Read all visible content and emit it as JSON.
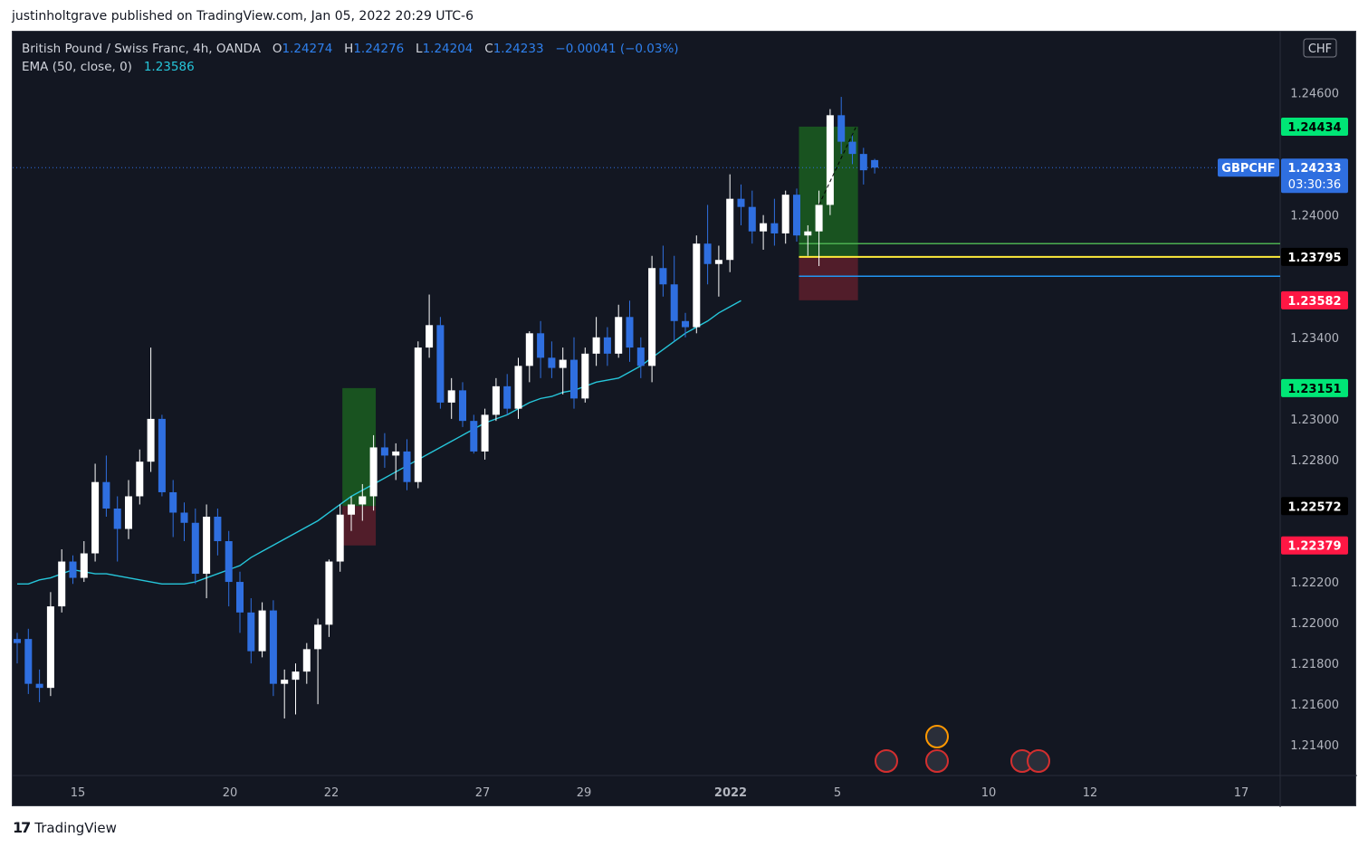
{
  "header": {
    "published": "justinholtgrave published on TradingView.com, Jan 05, 2022 20:29 UTC-6"
  },
  "legend": {
    "symbol": "British Pound / Swiss Franc, 4h, OANDA",
    "o_label": "O",
    "o": "1.24274",
    "h_label": "H",
    "h": "1.24276",
    "l_label": "L",
    "l": "1.24204",
    "c_label": "C",
    "c": "1.24233",
    "change": "−0.00041 (−0.03%)",
    "ema_label": "EMA (50, close, 0)",
    "ema": "1.23586"
  },
  "footer": {
    "logo": "17",
    "brand": "TradingView"
  },
  "colors": {
    "background": "#131722",
    "bull": "#ffffff",
    "bear": "#2f6fe0",
    "ema": "#26c6da",
    "target": "#00c853",
    "stop": "#ff1744",
    "fib50": "#4caf50",
    "fib618": "#ffeb3b",
    "fib786": "#2196f3"
  },
  "chart_data": {
    "type": "candlestick",
    "currency": "CHF",
    "ylim": [
      1.2125,
      1.249
    ],
    "y_ticks": [
      "1.24600",
      "1.24000",
      "1.23400",
      "1.23000",
      "1.22800",
      "1.22200",
      "1.22000",
      "1.21800",
      "1.21600",
      "1.21400"
    ],
    "x_ticks": [
      "15",
      "20",
      "22",
      "27",
      "29",
      "2022",
      "5",
      "10",
      "12",
      "17"
    ],
    "price_labels": [
      {
        "text": "1.24434",
        "value": 1.24434,
        "kind": "target"
      },
      {
        "text": "1.23795",
        "value": 1.23795,
        "kind": "entry"
      },
      {
        "text": "1.23582",
        "value": 1.23582,
        "kind": "stop"
      },
      {
        "text": "1.23151",
        "value": 1.23151,
        "kind": "target"
      },
      {
        "text": "1.22572",
        "value": 1.22572,
        "kind": "entry"
      },
      {
        "text": "1.22379",
        "value": 1.22379,
        "kind": "stop"
      }
    ],
    "last_price": {
      "symbol": "GBPCHF",
      "value": "1.24233",
      "countdown": "03:30:36",
      "level": 1.24233
    },
    "ema": [
      1.2219,
      1.2219,
      1.2221,
      1.2222,
      1.2224,
      1.2226,
      1.2225,
      1.2224,
      1.2224,
      1.2223,
      1.2222,
      1.2221,
      1.222,
      1.2219,
      1.2219,
      1.2219,
      1.222,
      1.2222,
      1.2224,
      1.2226,
      1.2228,
      1.2232,
      1.2235,
      1.2238,
      1.2241,
      1.2244,
      1.2247,
      1.225,
      1.2254,
      1.2258,
      1.2262,
      1.2265,
      1.2268,
      1.2271,
      1.2274,
      1.2277,
      1.228,
      1.2283,
      1.2286,
      1.2289,
      1.2292,
      1.2295,
      1.2298,
      1.23,
      1.2302,
      1.2305,
      1.2308,
      1.231,
      1.2311,
      1.2313,
      1.2314,
      1.2316,
      1.2318,
      1.2319,
      1.232,
      1.2323,
      1.2326,
      1.233,
      1.2334,
      1.2338,
      1.2342,
      1.2345,
      1.2348,
      1.2352,
      1.2355,
      1.2358
    ],
    "candles": [
      {
        "o": 1.2192,
        "h": 1.2195,
        "l": 1.218,
        "c": 1.219
      },
      {
        "o": 1.2192,
        "h": 1.2197,
        "l": 1.2165,
        "c": 1.217
      },
      {
        "o": 1.217,
        "h": 1.2177,
        "l": 1.2161,
        "c": 1.2168
      },
      {
        "o": 1.2168,
        "h": 1.2215,
        "l": 1.2164,
        "c": 1.2208
      },
      {
        "o": 1.2208,
        "h": 1.2236,
        "l": 1.2205,
        "c": 1.223
      },
      {
        "o": 1.223,
        "h": 1.2233,
        "l": 1.2219,
        "c": 1.2222
      },
      {
        "o": 1.2222,
        "h": 1.224,
        "l": 1.222,
        "c": 1.2234
      },
      {
        "o": 1.2234,
        "h": 1.2278,
        "l": 1.223,
        "c": 1.2269
      },
      {
        "o": 1.2269,
        "h": 1.2282,
        "l": 1.2252,
        "c": 1.2256
      },
      {
        "o": 1.2256,
        "h": 1.2262,
        "l": 1.223,
        "c": 1.2246
      },
      {
        "o": 1.2246,
        "h": 1.227,
        "l": 1.2241,
        "c": 1.2262
      },
      {
        "o": 1.2262,
        "h": 1.2285,
        "l": 1.2258,
        "c": 1.2279
      },
      {
        "o": 1.2279,
        "h": 1.2335,
        "l": 1.2274,
        "c": 1.23
      },
      {
        "o": 1.23,
        "h": 1.2302,
        "l": 1.2262,
        "c": 1.2264
      },
      {
        "o": 1.2264,
        "h": 1.227,
        "l": 1.2242,
        "c": 1.2254
      },
      {
        "o": 1.2254,
        "h": 1.2259,
        "l": 1.224,
        "c": 1.2249
      },
      {
        "o": 1.2249,
        "h": 1.2256,
        "l": 1.2219,
        "c": 1.2224
      },
      {
        "o": 1.2224,
        "h": 1.2258,
        "l": 1.2212,
        "c": 1.2252
      },
      {
        "o": 1.2252,
        "h": 1.2256,
        "l": 1.2233,
        "c": 1.224
      },
      {
        "o": 1.224,
        "h": 1.2245,
        "l": 1.2208,
        "c": 1.222
      },
      {
        "o": 1.222,
        "h": 1.2225,
        "l": 1.2195,
        "c": 1.2205
      },
      {
        "o": 1.2205,
        "h": 1.2212,
        "l": 1.218,
        "c": 1.2186
      },
      {
        "o": 1.2186,
        "h": 1.221,
        "l": 1.2183,
        "c": 1.2206
      },
      {
        "o": 1.2206,
        "h": 1.2211,
        "l": 1.2164,
        "c": 1.217
      },
      {
        "o": 1.217,
        "h": 1.2177,
        "l": 1.2153,
        "c": 1.2172
      },
      {
        "o": 1.2172,
        "h": 1.218,
        "l": 1.2155,
        "c": 1.2176
      },
      {
        "o": 1.2176,
        "h": 1.219,
        "l": 1.217,
        "c": 1.2187
      },
      {
        "o": 1.2187,
        "h": 1.2202,
        "l": 1.216,
        "c": 1.2199
      },
      {
        "o": 1.2199,
        "h": 1.2231,
        "l": 1.2193,
        "c": 1.223
      },
      {
        "o": 1.223,
        "h": 1.2258,
        "l": 1.2225,
        "c": 1.2253
      },
      {
        "o": 1.2253,
        "h": 1.2262,
        "l": 1.2245,
        "c": 1.2258
      },
      {
        "o": 1.2258,
        "h": 1.2268,
        "l": 1.225,
        "c": 1.2262
      },
      {
        "o": 1.2262,
        "h": 1.2292,
        "l": 1.2255,
        "c": 1.2286
      },
      {
        "o": 1.2286,
        "h": 1.2293,
        "l": 1.2276,
        "c": 1.2282
      },
      {
        "o": 1.2282,
        "h": 1.2288,
        "l": 1.227,
        "c": 1.2284
      },
      {
        "o": 1.2284,
        "h": 1.229,
        "l": 1.2265,
        "c": 1.2269
      },
      {
        "o": 1.2269,
        "h": 1.2338,
        "l": 1.2266,
        "c": 1.2335
      },
      {
        "o": 1.2335,
        "h": 1.2361,
        "l": 1.233,
        "c": 1.2346
      },
      {
        "o": 1.2346,
        "h": 1.235,
        "l": 1.2305,
        "c": 1.2308
      },
      {
        "o": 1.2308,
        "h": 1.232,
        "l": 1.23,
        "c": 1.2314
      },
      {
        "o": 1.2314,
        "h": 1.2318,
        "l": 1.2296,
        "c": 1.2299
      },
      {
        "o": 1.2299,
        "h": 1.2302,
        "l": 1.2283,
        "c": 1.2284
      },
      {
        "o": 1.2284,
        "h": 1.2305,
        "l": 1.228,
        "c": 1.2302
      },
      {
        "o": 1.2302,
        "h": 1.232,
        "l": 1.2299,
        "c": 1.2316
      },
      {
        "o": 1.2316,
        "h": 1.2322,
        "l": 1.2302,
        "c": 1.2305
      },
      {
        "o": 1.2305,
        "h": 1.233,
        "l": 1.23,
        "c": 1.2326
      },
      {
        "o": 1.2326,
        "h": 1.2343,
        "l": 1.2318,
        "c": 1.2342
      },
      {
        "o": 1.2342,
        "h": 1.2348,
        "l": 1.232,
        "c": 1.233
      },
      {
        "o": 1.233,
        "h": 1.2338,
        "l": 1.232,
        "c": 1.2325
      },
      {
        "o": 1.2325,
        "h": 1.2335,
        "l": 1.2312,
        "c": 1.2329
      },
      {
        "o": 1.2329,
        "h": 1.234,
        "l": 1.2305,
        "c": 1.231
      },
      {
        "o": 1.231,
        "h": 1.2335,
        "l": 1.2308,
        "c": 1.2332
      },
      {
        "o": 1.2332,
        "h": 1.235,
        "l": 1.2326,
        "c": 1.234
      },
      {
        "o": 1.234,
        "h": 1.2345,
        "l": 1.2326,
        "c": 1.2332
      },
      {
        "o": 1.2332,
        "h": 1.2356,
        "l": 1.233,
        "c": 1.235
      },
      {
        "o": 1.235,
        "h": 1.2358,
        "l": 1.2328,
        "c": 1.2335
      },
      {
        "o": 1.2335,
        "h": 1.234,
        "l": 1.232,
        "c": 1.2326
      },
      {
        "o": 1.2326,
        "h": 1.238,
        "l": 1.2318,
        "c": 1.2374
      },
      {
        "o": 1.2374,
        "h": 1.2385,
        "l": 1.236,
        "c": 1.2366
      },
      {
        "o": 1.2366,
        "h": 1.238,
        "l": 1.2338,
        "c": 1.2348
      },
      {
        "o": 1.2348,
        "h": 1.2352,
        "l": 1.234,
        "c": 1.2345
      },
      {
        "o": 1.2345,
        "h": 1.239,
        "l": 1.2342,
        "c": 1.2386
      },
      {
        "o": 1.2386,
        "h": 1.2405,
        "l": 1.2366,
        "c": 1.2376
      },
      {
        "o": 1.2376,
        "h": 1.2385,
        "l": 1.236,
        "c": 1.2378
      },
      {
        "o": 1.2378,
        "h": 1.242,
        "l": 1.2372,
        "c": 1.2408
      },
      {
        "o": 1.2408,
        "h": 1.2415,
        "l": 1.2395,
        "c": 1.2404
      },
      {
        "o": 1.2404,
        "h": 1.2412,
        "l": 1.2386,
        "c": 1.2392
      },
      {
        "o": 1.2392,
        "h": 1.24,
        "l": 1.2383,
        "c": 1.2396
      },
      {
        "o": 1.2396,
        "h": 1.2408,
        "l": 1.2385,
        "c": 1.2391
      },
      {
        "o": 1.2391,
        "h": 1.2412,
        "l": 1.2386,
        "c": 1.241
      },
      {
        "o": 1.241,
        "h": 1.2413,
        "l": 1.2387,
        "c": 1.239
      },
      {
        "o": 1.239,
        "h": 1.2395,
        "l": 1.238,
        "c": 1.2392
      },
      {
        "o": 1.2392,
        "h": 1.2412,
        "l": 1.2375,
        "c": 1.2405
      },
      {
        "o": 1.2405,
        "h": 1.2452,
        "l": 1.24,
        "c": 1.2449
      },
      {
        "o": 1.2449,
        "h": 1.2458,
        "l": 1.243,
        "c": 1.2436
      },
      {
        "o": 1.2436,
        "h": 1.244,
        "l": 1.2425,
        "c": 1.243
      },
      {
        "o": 1.243,
        "h": 1.2433,
        "l": 1.2415,
        "c": 1.2422
      },
      {
        "o": 1.2427,
        "h": 1.24276,
        "l": 1.24204,
        "c": 1.24233
      }
    ]
  }
}
